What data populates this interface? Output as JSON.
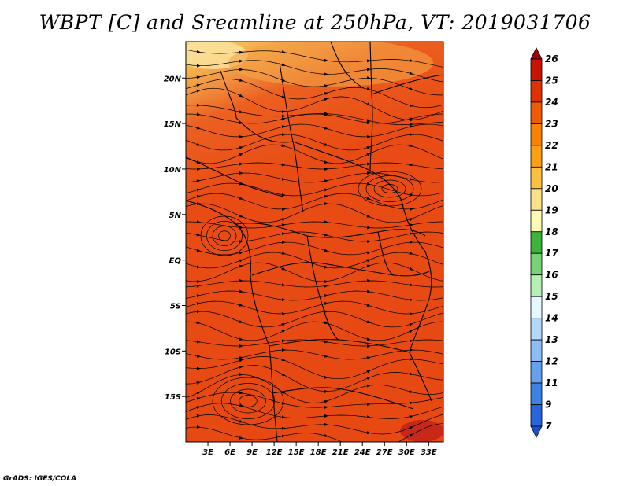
{
  "title": "WBPT [C] and Sreamline at 250hPa, VT: 2019031706",
  "credit": "GrADS: IGES/COLA",
  "map": {
    "lon_range": [
      0,
      35
    ],
    "lat_range": [
      -20,
      24
    ],
    "lon_ticks": [
      "3E",
      "6E",
      "9E",
      "12E",
      "15E",
      "18E",
      "21E",
      "24E",
      "27E",
      "30E",
      "33E"
    ],
    "lat_ticks": [
      "20N",
      "15N",
      "10N",
      "5N",
      "EQ",
      "5S",
      "10S",
      "15S"
    ],
    "variable": "WBPT [C]",
    "level": "250hPa",
    "valid_time": "2019031706"
  },
  "colorbar": {
    "levels": [
      "26",
      "25",
      "24",
      "23",
      "22",
      "21",
      "20",
      "19",
      "18",
      "17",
      "16",
      "15",
      "14",
      "13",
      "12",
      "11",
      "9",
      "7"
    ],
    "colors": [
      "#a50000",
      "#c81400",
      "#e03200",
      "#f05a00",
      "#fa8200",
      "#fca012",
      "#fcc040",
      "#fee08a",
      "#fefab4",
      "#3cb43c",
      "#78d278",
      "#b4f0b4",
      "#e6f8ff",
      "#b4d8fa",
      "#8cbef5",
      "#64a0f0",
      "#3c82e6",
      "#2864dc",
      "#1e50cd"
    ]
  }
}
